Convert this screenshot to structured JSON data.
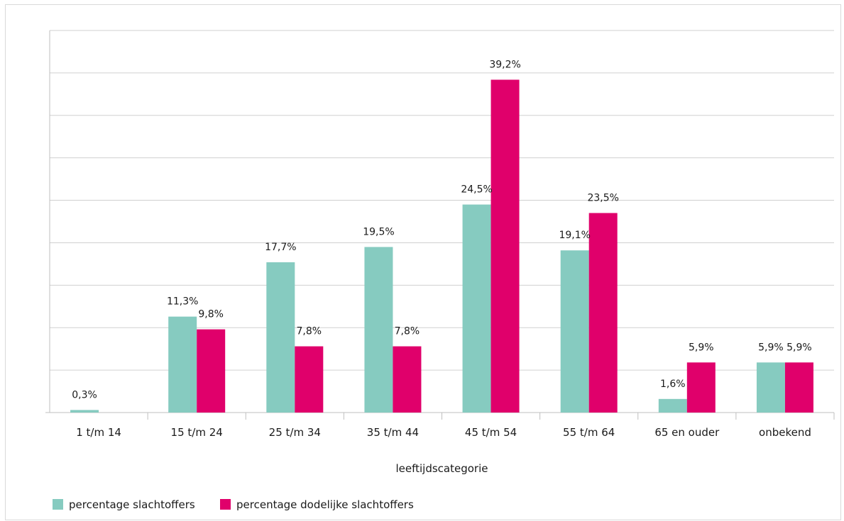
{
  "chart_data": {
    "type": "bar",
    "title": "",
    "xlabel": "leeftijdscategorie",
    "ylabel": "",
    "ylim": [
      0,
      45
    ],
    "grid": true,
    "legend_position": "bottom-left",
    "categories": [
      "1 t/m 14",
      "15 t/m 24",
      "25 t/m 34",
      "35 t/m 44",
      "45 t/m 54",
      "55 t/m 64",
      "65 en ouder",
      "onbekend"
    ],
    "series": [
      {
        "name": "percentage slachtoffers",
        "color": "#86cbc0",
        "values": [
          0.3,
          11.3,
          17.7,
          19.5,
          24.5,
          19.1,
          1.6,
          5.9
        ],
        "labels": [
          "0,3%",
          "11,3%",
          "17,7%",
          "19,5%",
          "24,5%",
          "19,1%",
          "1,6%",
          "5,9%"
        ]
      },
      {
        "name": "percentage dodelijke slachtoffers",
        "color": "#e0006b",
        "values": [
          null,
          9.8,
          7.8,
          7.8,
          39.2,
          23.5,
          5.9,
          5.9
        ],
        "labels": [
          "",
          "9,8%",
          "7,8%",
          "7,8%",
          "39,2%",
          "23,5%",
          "5,9%",
          "5,9%"
        ]
      }
    ]
  }
}
